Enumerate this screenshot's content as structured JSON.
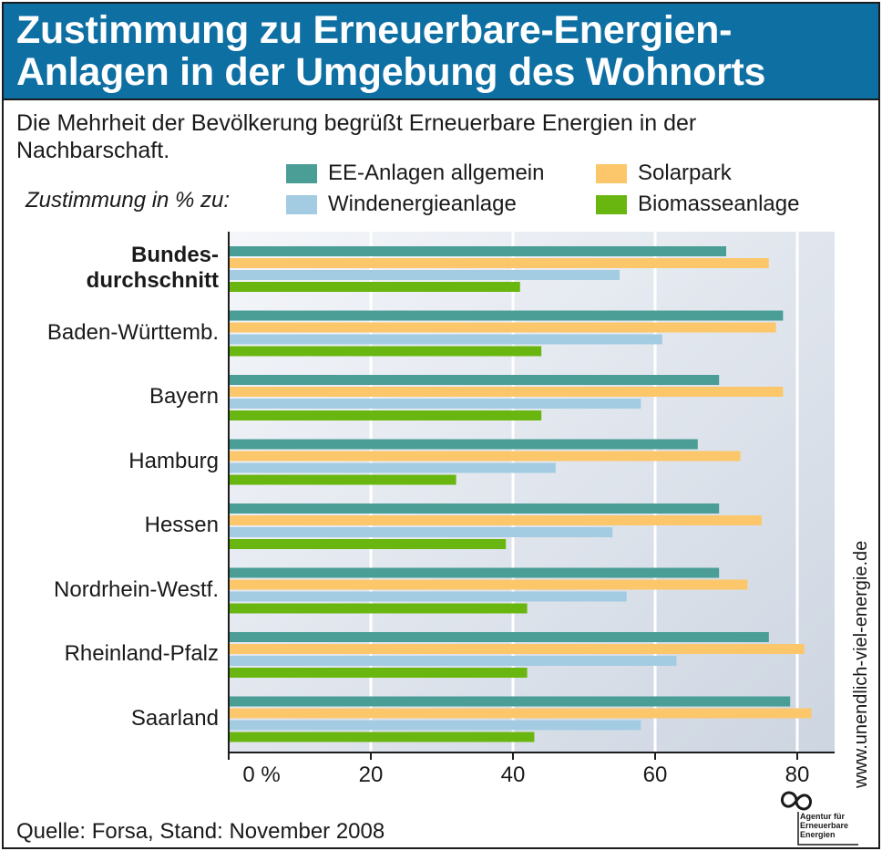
{
  "title_line1": "Zustimmung zu Erneuerbare-Energien-",
  "title_line2": "Anlagen in der Umgebung des Wohnorts",
  "subtitle": "Die Mehrheit der Bevölkerung begrüßt Erneuerbare Energien in der Nachbarschaft.",
  "axis_caption": "Zustimmung in % zu:",
  "source": "Quelle: Forsa, Stand: November 2008",
  "website": "www.unendlich-viel-energie.de",
  "logo": {
    "lines": [
      "Agentur für",
      "Erneuerbare",
      "Energien"
    ]
  },
  "colors": {
    "title_bg": "#0e6fa3",
    "ee_allgemein": "#4a9e96",
    "solarpark": "#fcc76a",
    "windenergie": "#a3cce3",
    "biomasse": "#6ab611"
  },
  "chart_data": {
    "type": "bar",
    "orientation": "horizontal",
    "categories": [
      "Bundes-\ndurchschnitt",
      "Baden-Württemb.",
      "Bayern",
      "Hamburg",
      "Hessen",
      "Nordrhein-Westf.",
      "Rheinland-Pfalz",
      "Saarland"
    ],
    "series": [
      {
        "name": "EE-Anlagen allgemein",
        "color": "#4a9e96",
        "values": [
          70,
          78,
          69,
          66,
          69,
          69,
          76,
          79
        ]
      },
      {
        "name": "Solarpark",
        "color": "#fcc76a",
        "values": [
          76,
          77,
          78,
          72,
          75,
          73,
          81,
          82
        ]
      },
      {
        "name": "Windenergieanlage",
        "color": "#a3cce3",
        "values": [
          55,
          61,
          58,
          46,
          54,
          56,
          63,
          58
        ]
      },
      {
        "name": "Biomasseanlage",
        "color": "#6ab611",
        "values": [
          41,
          44,
          44,
          32,
          39,
          42,
          42,
          43
        ]
      }
    ],
    "xlim": [
      0,
      85
    ],
    "xticks": [
      0,
      20,
      40,
      60,
      80
    ],
    "xtick_labels": [
      "0 %",
      "20",
      "40",
      "60",
      "80"
    ],
    "grid": true,
    "legend_placement": "top"
  }
}
